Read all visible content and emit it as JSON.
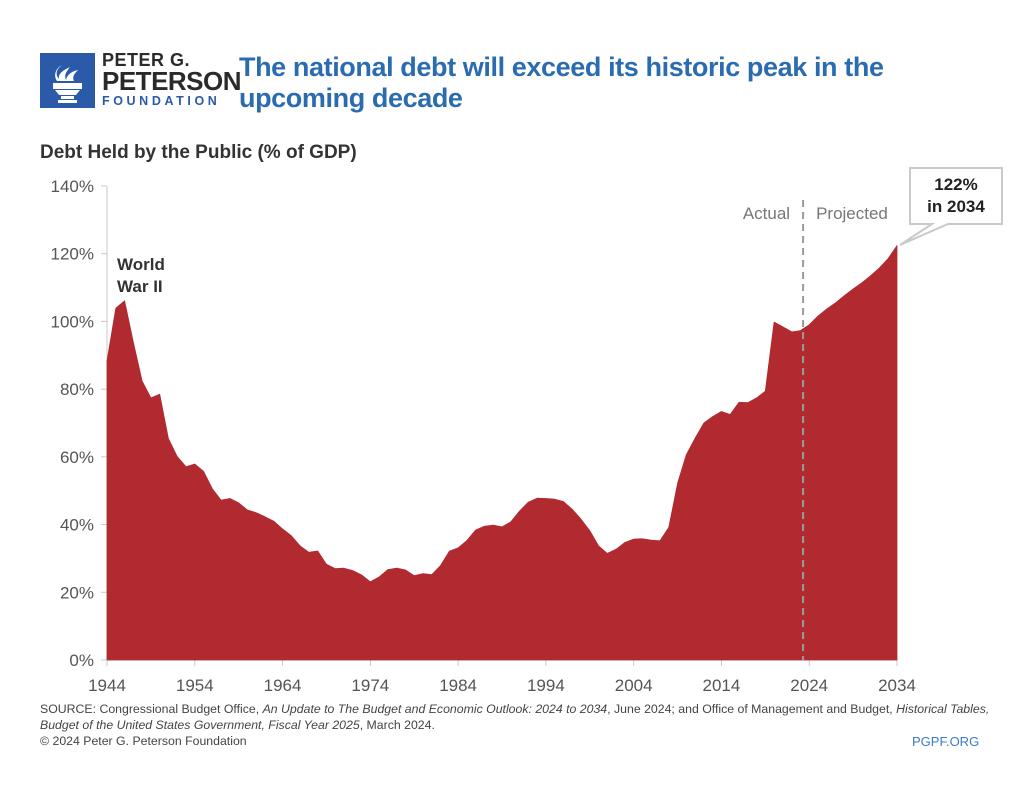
{
  "branding": {
    "logo_icon": "torch-icon",
    "name_line1": "PETER G.",
    "name_line2": "PETERSON",
    "name_line3": "FOUNDATION",
    "brand_color": "#2b5aa8"
  },
  "header": {
    "title": "The national debt will exceed its historic peak in the upcoming decade",
    "title_color": "#2b6cb0"
  },
  "chart_data": {
    "type": "area",
    "title": "The national debt will exceed its historic peak in the upcoming decade",
    "subtitle": "Debt Held by the Public (% of GDP)",
    "xlabel": "",
    "ylabel": "Debt Held by the Public (% of GDP)",
    "xlim": [
      1944,
      2034
    ],
    "ylim": [
      0,
      140
    ],
    "x_ticks": [
      1944,
      1954,
      1964,
      1974,
      1984,
      1994,
      2004,
      2014,
      2024,
      2034
    ],
    "x_tick_labels": [
      "1944",
      "1954",
      "1964",
      "1974",
      "1984",
      "1994",
      "2004",
      "2014",
      "2024",
      "2034"
    ],
    "y_ticks": [
      0,
      20,
      40,
      60,
      80,
      100,
      120,
      140
    ],
    "y_tick_labels": [
      "0%",
      "20%",
      "40%",
      "60%",
      "80%",
      "100%",
      "120%",
      "140%"
    ],
    "grid": false,
    "fill_color": "#b02a30",
    "divider_year": 2023.3,
    "divider_labels": {
      "left": "Actual",
      "right": "Projected"
    },
    "annotations": [
      {
        "text_lines": [
          "World",
          "War II"
        ],
        "x": 1945,
        "y": 118
      },
      {
        "text_lines": [
          "122%",
          "in 2034"
        ],
        "x": 2034,
        "y": 122,
        "type": "callout"
      }
    ],
    "series": [
      {
        "name": "Debt Held by the Public",
        "x": [
          1944,
          1945,
          1946,
          1947,
          1948,
          1949,
          1950,
          1951,
          1952,
          1953,
          1954,
          1955,
          1956,
          1957,
          1958,
          1959,
          1960,
          1961,
          1962,
          1963,
          1964,
          1965,
          1966,
          1967,
          1968,
          1969,
          1970,
          1971,
          1972,
          1973,
          1974,
          1975,
          1976,
          1977,
          1978,
          1979,
          1980,
          1981,
          1982,
          1983,
          1984,
          1985,
          1986,
          1987,
          1988,
          1989,
          1990,
          1991,
          1992,
          1993,
          1994,
          1995,
          1996,
          1997,
          1998,
          1999,
          2000,
          2001,
          2002,
          2003,
          2004,
          2005,
          2006,
          2007,
          2008,
          2009,
          2010,
          2011,
          2012,
          2013,
          2014,
          2015,
          2016,
          2017,
          2018,
          2019,
          2020,
          2021,
          2022,
          2023,
          2024,
          2025,
          2026,
          2027,
          2028,
          2029,
          2030,
          2031,
          2032,
          2033,
          2034
        ],
        "values": [
          88.3,
          103.9,
          106.1,
          93.9,
          82.4,
          77.4,
          78.5,
          65.4,
          60.1,
          57.1,
          57.9,
          55.7,
          50.6,
          47.2,
          47.7,
          46.4,
          44.3,
          43.5,
          42.3,
          41.0,
          38.7,
          36.7,
          33.7,
          31.8,
          32.2,
          28.3,
          27.0,
          27.1,
          26.4,
          25.1,
          23.1,
          24.5,
          26.7,
          27.1,
          26.6,
          24.9,
          25.5,
          25.2,
          27.9,
          32.1,
          33.1,
          35.3,
          38.4,
          39.5,
          39.8,
          39.3,
          40.8,
          44.0,
          46.6,
          47.8,
          47.7,
          47.5,
          46.8,
          44.5,
          41.6,
          38.2,
          33.7,
          31.5,
          32.7,
          34.7,
          35.7,
          35.8,
          35.4,
          35.2,
          39.2,
          52.2,
          60.6,
          65.5,
          70.0,
          71.9,
          73.4,
          72.5,
          76.1,
          76.0,
          77.4,
          79.4,
          99.8,
          98.4,
          96.9,
          97.3,
          99.0,
          101.6,
          103.7,
          105.5,
          107.6,
          109.6,
          111.4,
          113.5,
          115.8,
          118.6,
          122.4
        ]
      }
    ]
  },
  "footer": {
    "source_prefix": "SOURCE: Congressional Budget Office, ",
    "source_title1": "An Update to The Budget and Economic Outlook: 2024 to 2034",
    "source_mid": ", June 2024; and Office of Management and Budget, ",
    "source_title2": "Historical Tables, Budget of the United States Government, Fiscal Year 2025",
    "source_suffix": ", March 2024.",
    "copyright": "© 2024 Peter G. Peterson Foundation",
    "site": "PGPF.ORG"
  }
}
